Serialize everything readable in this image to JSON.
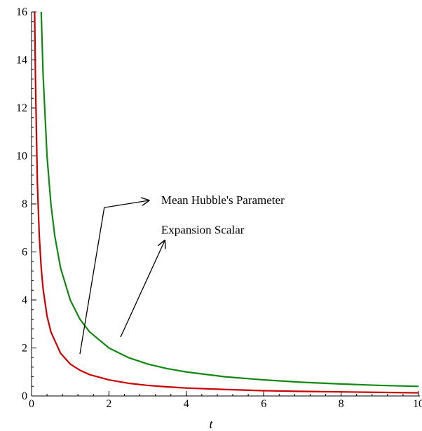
{
  "chart_data": {
    "type": "line",
    "title": "",
    "xlabel": "t",
    "ylabel": "",
    "xlim": [
      0,
      10
    ],
    "ylim": [
      0,
      16
    ],
    "x_ticks": [
      0,
      2,
      4,
      6,
      8,
      10
    ],
    "x_tick_labels": [
      "0",
      "2",
      "4",
      "6",
      "8",
      "10"
    ],
    "y_ticks": [
      0,
      2,
      4,
      6,
      8,
      10,
      12,
      14,
      16
    ],
    "y_tick_labels": [
      "0",
      "2",
      "4",
      "6",
      "8",
      "10",
      "12",
      "14",
      "16"
    ],
    "grid": false,
    "legend": "none",
    "series": [
      {
        "color": "#cc0000",
        "x": [
          0.08,
          0.1,
          0.15,
          0.2,
          0.25,
          0.3,
          0.4,
          0.5,
          0.75,
          1.0,
          1.25,
          1.5,
          2.0,
          2.5,
          3.0,
          3.5,
          4.0,
          5.0,
          6.0,
          7.0,
          8.0,
          9.0,
          10.0
        ],
        "y": [
          16.0,
          13.33,
          8.89,
          6.67,
          5.33,
          4.44,
          3.33,
          2.67,
          1.78,
          1.33,
          1.07,
          0.89,
          0.67,
          0.53,
          0.44,
          0.38,
          0.33,
          0.27,
          0.22,
          0.19,
          0.17,
          0.15,
          0.13
        ]
      },
      {
        "color": "#118811",
        "x": [
          0.25,
          0.3,
          0.4,
          0.5,
          0.6,
          0.75,
          1.0,
          1.25,
          1.5,
          2.0,
          2.5,
          3.0,
          3.5,
          4.0,
          5.0,
          6.0,
          7.0,
          8.0,
          9.0,
          10.0
        ],
        "y": [
          16.0,
          13.33,
          10.0,
          8.0,
          6.67,
          5.33,
          4.0,
          3.2,
          2.67,
          2.0,
          1.6,
          1.33,
          1.14,
          1.0,
          0.8,
          0.67,
          0.57,
          0.5,
          0.44,
          0.4
        ]
      }
    ],
    "annotations": [
      {
        "text": "Mean Hubble's Parameter",
        "x": 3.35,
        "y": 8.15
      },
      {
        "text": "Expansion Scalar",
        "x": 3.35,
        "y": 6.9
      }
    ],
    "arrows": [
      {
        "from": [
          1.25,
          1.75
        ],
        "via": [
          1.88,
          7.85
        ],
        "to": [
          3.05,
          8.15
        ]
      },
      {
        "from": [
          2.3,
          2.45
        ],
        "to": [
          3.45,
          6.5
        ]
      }
    ]
  }
}
